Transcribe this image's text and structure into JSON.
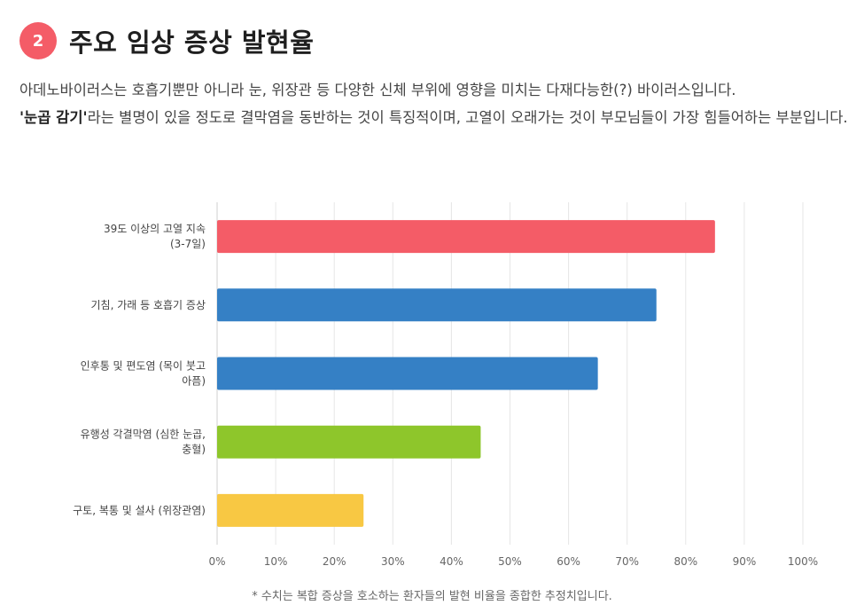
{
  "section": {
    "number": "2",
    "title": "주요 임상 증상 발현율"
  },
  "intro": {
    "text_1": "아데노바이러스는 호흡기뿐만 아니라 눈, 위장관 등 다양한 신체 부위에 영향을 미치는 다재다능한(?) 바이러스입니다.",
    "text_bold": "'눈곱 감기'",
    "text_2": "라는 별명이 있을 정도로 결막염을 동반하는 것이 특징적이며, 고열이 오래가는 것이 부모님들이 가장 힘들어하는 부분입니다."
  },
  "chart_data": {
    "type": "bar",
    "orientation": "horizontal",
    "categories": [
      [
        "39도 이상의 고열 지속",
        "(3-7일)"
      ],
      [
        "기침, 가래 등 호흡기 증상"
      ],
      [
        "인후통 및 편도염 (목이 붓고",
        "아픔)"
      ],
      [
        "유행성 각결막염 (심한 눈곱,",
        "충혈)"
      ],
      [
        "구토, 복통 및 설사 (위장관염)"
      ]
    ],
    "values": [
      85,
      75,
      65,
      45,
      25
    ],
    "bar_colors": [
      "#f45c67",
      "#3580c5",
      "#3580c5",
      "#8ec62b",
      "#f8c843"
    ],
    "xlim": [
      0,
      100
    ],
    "xticks": [
      0,
      10,
      20,
      30,
      40,
      50,
      60,
      70,
      80,
      90,
      100
    ],
    "tick_suffix": "%",
    "grid": "vertical",
    "legend": "none"
  },
  "footnote": "* 수치는 복합 증상을 호소하는 환자들의 발현 비율을 종합한 추정치입니다."
}
